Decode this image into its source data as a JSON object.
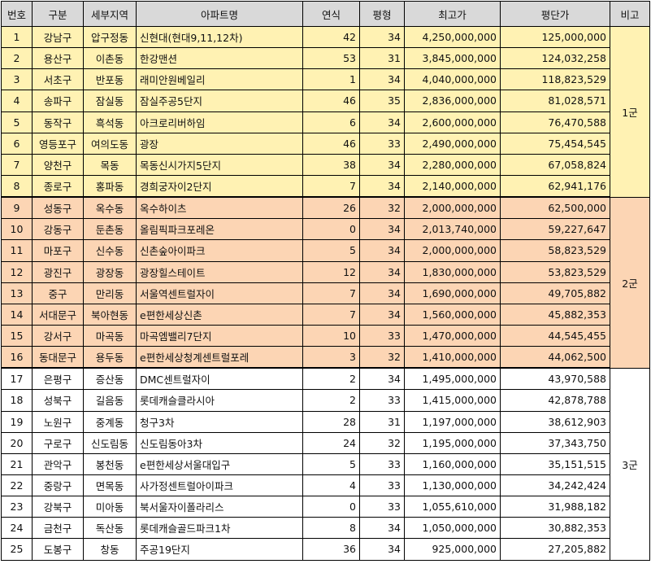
{
  "headers": [
    "번호",
    "구분",
    "세부지역",
    "아파트명",
    "연식",
    "평형",
    "최고가",
    "평단가",
    "비고"
  ],
  "rows": [
    {
      "no": "1",
      "district": "강남구",
      "area": "압구정동",
      "apt": "신현대(현대9,11,12차)",
      "age": "42",
      "size": "34",
      "max": "4,250,000,000",
      "per": "125,000,000",
      "group": 1
    },
    {
      "no": "2",
      "district": "용산구",
      "area": "이촌동",
      "apt": "한강맨션",
      "age": "53",
      "size": "31",
      "max": "3,845,000,000",
      "per": "124,032,258",
      "group": 1
    },
    {
      "no": "3",
      "district": "서초구",
      "area": "반포동",
      "apt": "래미안원베일리",
      "age": "1",
      "size": "34",
      "max": "4,040,000,000",
      "per": "118,823,529",
      "group": 1
    },
    {
      "no": "4",
      "district": "송파구",
      "area": "잠실동",
      "apt": "잠실주공5단지",
      "age": "46",
      "size": "35",
      "max": "2,836,000,000",
      "per": "81,028,571",
      "group": 1
    },
    {
      "no": "5",
      "district": "동작구",
      "area": "흑석동",
      "apt": "아크로리버하임",
      "age": "6",
      "size": "34",
      "max": "2,600,000,000",
      "per": "76,470,588",
      "group": 1
    },
    {
      "no": "6",
      "district": "영등포구",
      "area": "여의도동",
      "apt": "광장",
      "age": "46",
      "size": "33",
      "max": "2,490,000,000",
      "per": "75,454,545",
      "group": 1
    },
    {
      "no": "7",
      "district": "양천구",
      "area": "목동",
      "apt": "목동신시가지5단지",
      "age": "38",
      "size": "34",
      "max": "2,280,000,000",
      "per": "67,058,824",
      "group": 1
    },
    {
      "no": "8",
      "district": "종로구",
      "area": "홍파동",
      "apt": "경희궁자이2단지",
      "age": "7",
      "size": "34",
      "max": "2,140,000,000",
      "per": "62,941,176",
      "group": 1
    },
    {
      "no": "9",
      "district": "성동구",
      "area": "옥수동",
      "apt": "옥수하이츠",
      "age": "26",
      "size": "32",
      "max": "2,000,000,000",
      "per": "62,500,000",
      "group": 2
    },
    {
      "no": "10",
      "district": "강동구",
      "area": "둔촌동",
      "apt": "올림픽파크포레온",
      "age": "0",
      "size": "34",
      "max": "2,013,740,000",
      "per": "59,227,647",
      "group": 2
    },
    {
      "no": "11",
      "district": "마포구",
      "area": "신수동",
      "apt": "신촌숲아이파크",
      "age": "5",
      "size": "34",
      "max": "2,000,000,000",
      "per": "58,823,529",
      "group": 2
    },
    {
      "no": "12",
      "district": "광진구",
      "area": "광장동",
      "apt": "광장힐스테이트",
      "age": "12",
      "size": "34",
      "max": "1,830,000,000",
      "per": "53,823,529",
      "group": 2
    },
    {
      "no": "13",
      "district": "중구",
      "area": "만리동",
      "apt": "서울역센트럴자이",
      "age": "7",
      "size": "34",
      "max": "1,690,000,000",
      "per": "49,705,882",
      "group": 2
    },
    {
      "no": "14",
      "district": "서대문구",
      "area": "북아현동",
      "apt": "e편한세상신촌",
      "age": "7",
      "size": "34",
      "max": "1,560,000,000",
      "per": "45,882,353",
      "group": 2
    },
    {
      "no": "15",
      "district": "강서구",
      "area": "마곡동",
      "apt": "마곡엠밸리7단지",
      "age": "10",
      "size": "33",
      "max": "1,470,000,000",
      "per": "44,545,455",
      "group": 2
    },
    {
      "no": "16",
      "district": "동대문구",
      "area": "용두동",
      "apt": "e편한세상청계센트럴포레",
      "age": "3",
      "size": "32",
      "max": "1,410,000,000",
      "per": "44,062,500",
      "group": 2
    },
    {
      "no": "17",
      "district": "은평구",
      "area": "증산동",
      "apt": "DMC센트럴자이",
      "age": "2",
      "size": "34",
      "max": "1,495,000,000",
      "per": "43,970,588",
      "group": 3
    },
    {
      "no": "18",
      "district": "성북구",
      "area": "길음동",
      "apt": "롯데캐슬클라시아",
      "age": "2",
      "size": "33",
      "max": "1,415,000,000",
      "per": "42,878,788",
      "group": 3
    },
    {
      "no": "19",
      "district": "노원구",
      "area": "중계동",
      "apt": "청구3차",
      "age": "28",
      "size": "31",
      "max": "1,197,000,000",
      "per": "38,612,903",
      "group": 3
    },
    {
      "no": "20",
      "district": "구로구",
      "area": "신도림동",
      "apt": "신도림동아3차",
      "age": "24",
      "size": "32",
      "max": "1,195,000,000",
      "per": "37,343,750",
      "group": 3
    },
    {
      "no": "21",
      "district": "관악구",
      "area": "봉천동",
      "apt": "e편한세상서울대입구",
      "age": "5",
      "size": "33",
      "max": "1,160,000,000",
      "per": "35,151,515",
      "group": 3
    },
    {
      "no": "22",
      "district": "중랑구",
      "area": "면목동",
      "apt": "사가정센트럴아이파크",
      "age": "4",
      "size": "33",
      "max": "1,130,000,000",
      "per": "34,242,424",
      "group": 3
    },
    {
      "no": "23",
      "district": "강북구",
      "area": "미아동",
      "apt": "북서울자이폴라리스",
      "age": "0",
      "size": "33",
      "max": "1,055,610,000",
      "per": "31,988,182",
      "group": 3
    },
    {
      "no": "24",
      "district": "금천구",
      "area": "독산동",
      "apt": "롯데캐슬골드파크1차",
      "age": "8",
      "size": "34",
      "max": "1,050,000,000",
      "per": "30,882,353",
      "group": 3
    },
    {
      "no": "25",
      "district": "도봉구",
      "area": "창동",
      "apt": "주공19단지",
      "age": "36",
      "size": "34",
      "max": "925,000,000",
      "per": "27,205,882",
      "group": 3
    }
  ],
  "groups": {
    "1": "1군",
    "2": "2군",
    "3": "3군"
  },
  "colors": {
    "group1": "#fff2b3",
    "group2": "#fcd5b4",
    "group3": "#ffffff",
    "header": "#d9d9d9"
  }
}
